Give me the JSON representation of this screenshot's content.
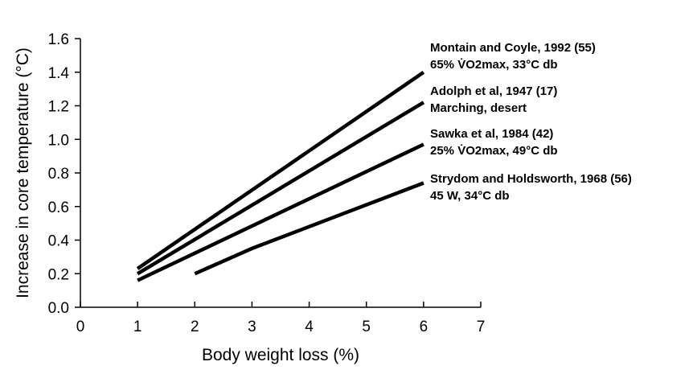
{
  "chart_data": {
    "type": "line",
    "title": "",
    "xlabel": "Body weight loss (%)",
    "ylabel": "Increase in core temperature (°C)",
    "xlim": [
      0,
      7
    ],
    "ylim": [
      0.0,
      1.6
    ],
    "x_ticks": [
      "0",
      "1",
      "2",
      "3",
      "4",
      "5",
      "6",
      "7"
    ],
    "y_ticks": [
      "0.0",
      "0.2",
      "0.4",
      "0.6",
      "0.8",
      "1.0",
      "1.2",
      "1.4",
      "1.6"
    ],
    "grid": false,
    "legend": "right-side inline labels",
    "series": [
      {
        "label_line1": "Montain and Coyle, 1992 (55)",
        "label_line2": "65% V̇O2max, 33°C db",
        "x": [
          1,
          6
        ],
        "y": [
          0.23,
          1.4
        ]
      },
      {
        "label_line1": "Adolph et al, 1947 (17)",
        "label_line2": "Marching, desert",
        "x": [
          1,
          6
        ],
        "y": [
          0.2,
          1.22
        ]
      },
      {
        "label_line1": "Sawka et al, 1984 (42)",
        "label_line2": "25% V̇O2max, 49°C db",
        "x": [
          1,
          6
        ],
        "y": [
          0.16,
          0.97
        ]
      },
      {
        "label_line1": "Strydom and Holdsworth, 1968 (56)",
        "label_line2": "45 W, 34°C db",
        "x": [
          2,
          3,
          6
        ],
        "y": [
          0.2,
          0.35,
          0.74
        ]
      }
    ]
  }
}
